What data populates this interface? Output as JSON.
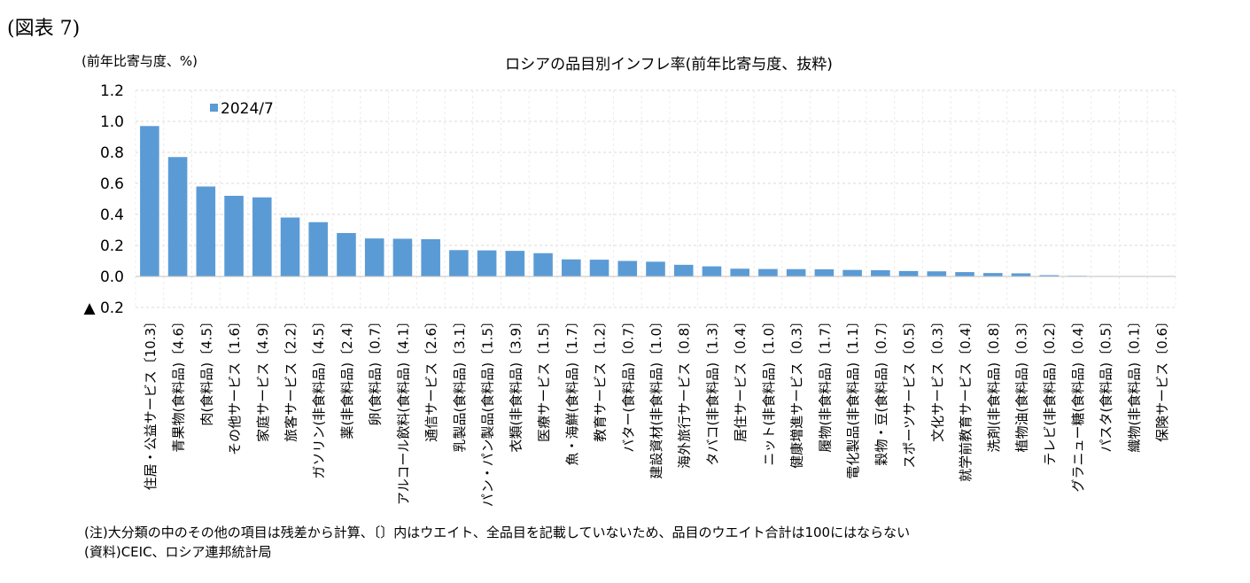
{
  "figure_label": "(図表 7)",
  "notes": {
    "note": "(注)大分類の中のその他の項目は残差から計算、〔〕内はウエイト、全品目を記載していないため、品目のウエイト合計は100にはならない",
    "source": "(資料)CEIC、ロシア連邦統計局"
  },
  "chart_data": {
    "type": "bar",
    "title": "ロシアの品目別インフレ率(前年比寄与度、抜粋)",
    "ylabel": "(前年比寄与度、%)",
    "ylim": [
      -0.2,
      1.2
    ],
    "yticks": [
      1.2,
      1.0,
      0.8,
      0.6,
      0.4,
      0.2,
      0.0,
      -0.2
    ],
    "ytick_labels": [
      "1.2",
      "1.0",
      "0.8",
      "0.6",
      "0.4",
      "0.2",
      "0.0",
      "▲ 0.2"
    ],
    "grid": true,
    "legend": "top-left",
    "bar_color": "#5b9bd5",
    "categories": [
      "住居・公益サービス〔10.3〕",
      "青果物(食料品)〔4.6〕",
      "肉(食料品)〔4.5〕",
      "その他サービス〔1.6〕",
      "家庭サービス〔4.9〕",
      "旅客サービス〔2.2〕",
      "ガソリン(非食料品)〔4.5〕",
      "薬(非食料品)〔2.4〕",
      "卵(食料品)〔0.7〕",
      "アルコール飲料(食料品)〔4.1〕",
      "通信サービス〔2.6〕",
      "乳製品(食料品)〔3.1〕",
      "パン・パン製品(食料品)〔1.5〕",
      "衣類(非食料品)〔3.9〕",
      "医療サービス〔1.5〕",
      "魚・海鮮(食料品)〔1.7〕",
      "教育サービス〔1.2〕",
      "バター(食料品)〔0.7〕",
      "建設資材(非食料品)〔1.0〕",
      "海外旅行サービス〔0.8〕",
      "タバコ(非食料品)〔1.3〕",
      "居住サービス〔0.4〕",
      "ニット(非食料品)〔1.0〕",
      "健康増進サービス〔0.3〕",
      "履物(非食料品)〔1.7〕",
      "電化製品(非食料品)〔1.1〕",
      "穀物・豆(食料品)〔0.7〕",
      "スポーツサービス〔0.5〕",
      "文化サービス〔0.3〕",
      "就学前教育サービス〔0.4〕",
      "洗剤(非食料品)〔0.8〕",
      "植物油(食料品)〔0.3〕",
      "テレビ(非食料品)〔0.2〕",
      "グラニュー糖(食料品)〔0.4〕",
      "パスタ(食料品)〔0.5〕",
      "織物(非食料品)〔0.1〕",
      "保険サービス〔0.6〕"
    ],
    "series": [
      {
        "name": "2024/7",
        "values": [
          0.97,
          0.77,
          0.58,
          0.52,
          0.51,
          0.38,
          0.35,
          0.28,
          0.245,
          0.243,
          0.24,
          0.17,
          0.168,
          0.165,
          0.15,
          0.11,
          0.108,
          0.1,
          0.095,
          0.075,
          0.065,
          0.05,
          0.048,
          0.047,
          0.046,
          0.042,
          0.04,
          0.035,
          0.033,
          0.028,
          0.022,
          0.02,
          0.008,
          0.004,
          0.002,
          0.001,
          0.0005
        ]
      }
    ]
  }
}
